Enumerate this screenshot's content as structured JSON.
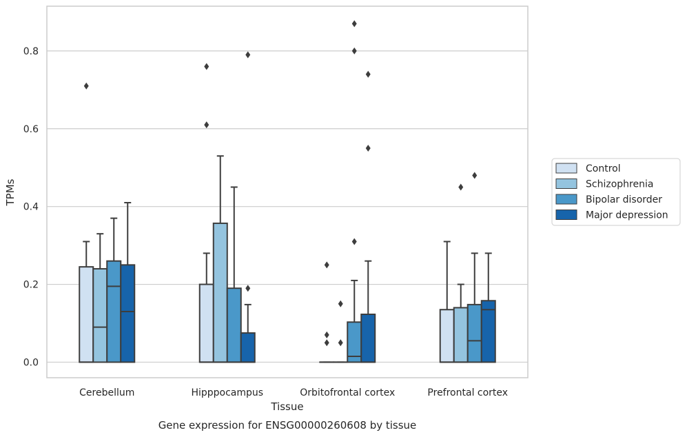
{
  "chart_data": {
    "type": "boxplot",
    "xlabel": "Tissue",
    "ylabel": "TPMs",
    "caption": "Gene expression for ENSG00000260608 by tissue",
    "ylim": [
      -0.04,
      0.915
    ],
    "yticks": [
      0.0,
      0.2,
      0.4,
      0.6,
      0.8
    ],
    "ytick_labels": [
      "0.0",
      "0.2",
      "0.4",
      "0.6",
      "0.8"
    ],
    "grid": "horizontal",
    "legend_position": "right",
    "categories": [
      "Cerebellum",
      "Hipppocampus",
      "Orbitofrontal cortex",
      "Prefrontal cortex"
    ],
    "series": [
      {
        "name": "Control",
        "color": "#d0e1f2",
        "boxes": [
          {
            "q1": 0.0,
            "median": 0.0,
            "q3": 0.245,
            "whisker_low": 0.0,
            "whisker_high": 0.31,
            "outliers": [
              0.71
            ]
          },
          {
            "q1": 0.0,
            "median": 0.0,
            "q3": 0.2,
            "whisker_low": 0.0,
            "whisker_high": 0.28,
            "outliers": [
              0.61,
              0.76
            ]
          },
          {
            "q1": 0.0,
            "median": 0.0,
            "q3": 0.0,
            "whisker_low": 0.0,
            "whisker_high": 0.0,
            "outliers": [
              0.05,
              0.07,
              0.25
            ]
          },
          {
            "q1": 0.0,
            "median": 0.0,
            "q3": 0.135,
            "whisker_low": 0.0,
            "whisker_high": 0.31,
            "outliers": []
          }
        ]
      },
      {
        "name": "Schizophrenia",
        "color": "#94c4df",
        "boxes": [
          {
            "q1": 0.0,
            "median": 0.09,
            "q3": 0.24,
            "whisker_low": 0.0,
            "whisker_high": 0.33,
            "outliers": []
          },
          {
            "q1": 0.0,
            "median": 0.0,
            "q3": 0.357,
            "whisker_low": 0.0,
            "whisker_high": 0.53,
            "outliers": []
          },
          {
            "q1": 0.0,
            "median": 0.0,
            "q3": 0.0,
            "whisker_low": 0.0,
            "whisker_high": 0.0,
            "outliers": [
              0.05,
              0.15
            ]
          },
          {
            "q1": 0.0,
            "median": 0.0,
            "q3": 0.14,
            "whisker_low": 0.0,
            "whisker_high": 0.2,
            "outliers": [
              0.45
            ]
          }
        ]
      },
      {
        "name": "Bipolar disorder",
        "color": "#4a98c9",
        "boxes": [
          {
            "q1": 0.0,
            "median": 0.195,
            "q3": 0.26,
            "whisker_low": 0.0,
            "whisker_high": 0.37,
            "outliers": []
          },
          {
            "q1": 0.0,
            "median": 0.0,
            "q3": 0.19,
            "whisker_low": 0.0,
            "whisker_high": 0.45,
            "outliers": []
          },
          {
            "q1": 0.0,
            "median": 0.015,
            "q3": 0.103,
            "whisker_low": 0.0,
            "whisker_high": 0.21,
            "outliers": [
              0.31,
              0.8,
              0.87
            ]
          },
          {
            "q1": 0.0,
            "median": 0.055,
            "q3": 0.148,
            "whisker_low": 0.0,
            "whisker_high": 0.28,
            "outliers": [
              0.48
            ]
          }
        ]
      },
      {
        "name": "Major depression",
        "color": "#1764ab",
        "boxes": [
          {
            "q1": 0.0,
            "median": 0.13,
            "q3": 0.25,
            "whisker_low": 0.0,
            "whisker_high": 0.41,
            "outliers": []
          },
          {
            "q1": 0.0,
            "median": 0.0,
            "q3": 0.075,
            "whisker_low": 0.0,
            "whisker_high": 0.148,
            "outliers": [
              0.19,
              0.79
            ]
          },
          {
            "q1": 0.0,
            "median": 0.0,
            "q3": 0.123,
            "whisker_low": 0.0,
            "whisker_high": 0.26,
            "outliers": [
              0.55,
              0.74
            ]
          },
          {
            "q1": 0.0,
            "median": 0.135,
            "q3": 0.158,
            "whisker_low": 0.0,
            "whisker_high": 0.28,
            "outliers": []
          }
        ]
      }
    ]
  }
}
